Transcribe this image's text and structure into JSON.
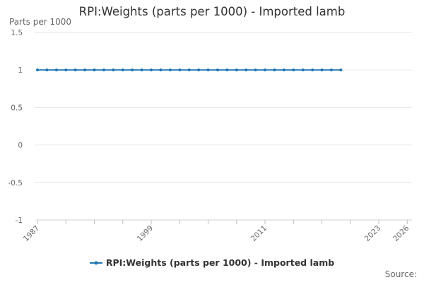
{
  "chart_data": {
    "type": "line",
    "title": "RPI:Weights (parts per 1000) - Imported lamb",
    "ylabel": "Parts per 1000",
    "xlabel": "",
    "ylim": [
      -1,
      1.5
    ],
    "xlim": [
      1987,
      2026.5
    ],
    "yticks": [
      -1,
      -0.5,
      0,
      0.5,
      1,
      1.5
    ],
    "yticklabels": [
      "-1",
      "-0.5",
      "0",
      "0.5",
      "1",
      "1.5"
    ],
    "xticks": [
      1987,
      1999,
      2011,
      2023,
      2026
    ],
    "xticklabels": [
      "1987",
      "1999",
      "2011",
      "2023",
      "2026"
    ],
    "minor_xticks": [
      1990,
      1993,
      1996,
      2002,
      2005,
      2008,
      2014,
      2017,
      2020
    ],
    "grid": "horizontal",
    "legend_position": "bottom-center",
    "series": [
      {
        "name": "RPI:Weights (parts per 1000) - Imported lamb",
        "color": "#1f77b4",
        "x": [
          1987,
          1988,
          1989,
          1990,
          1991,
          1992,
          1993,
          1994,
          1995,
          1996,
          1997,
          1998,
          1999,
          2000,
          2001,
          2002,
          2003,
          2004,
          2005,
          2006,
          2007,
          2008,
          2009,
          2010,
          2011,
          2012,
          2013,
          2014,
          2015,
          2016,
          2017,
          2018,
          2019
        ],
        "values": [
          1,
          1,
          1,
          1,
          1,
          1,
          1,
          1,
          1,
          1,
          1,
          1,
          1,
          1,
          1,
          1,
          1,
          1,
          1,
          1,
          1,
          1,
          1,
          1,
          1,
          1,
          1,
          1,
          1,
          1,
          1,
          1,
          1
        ]
      }
    ]
  },
  "legend": {
    "label": "RPI:Weights (parts per 1000) - Imported lamb"
  },
  "source_label": "Source:"
}
